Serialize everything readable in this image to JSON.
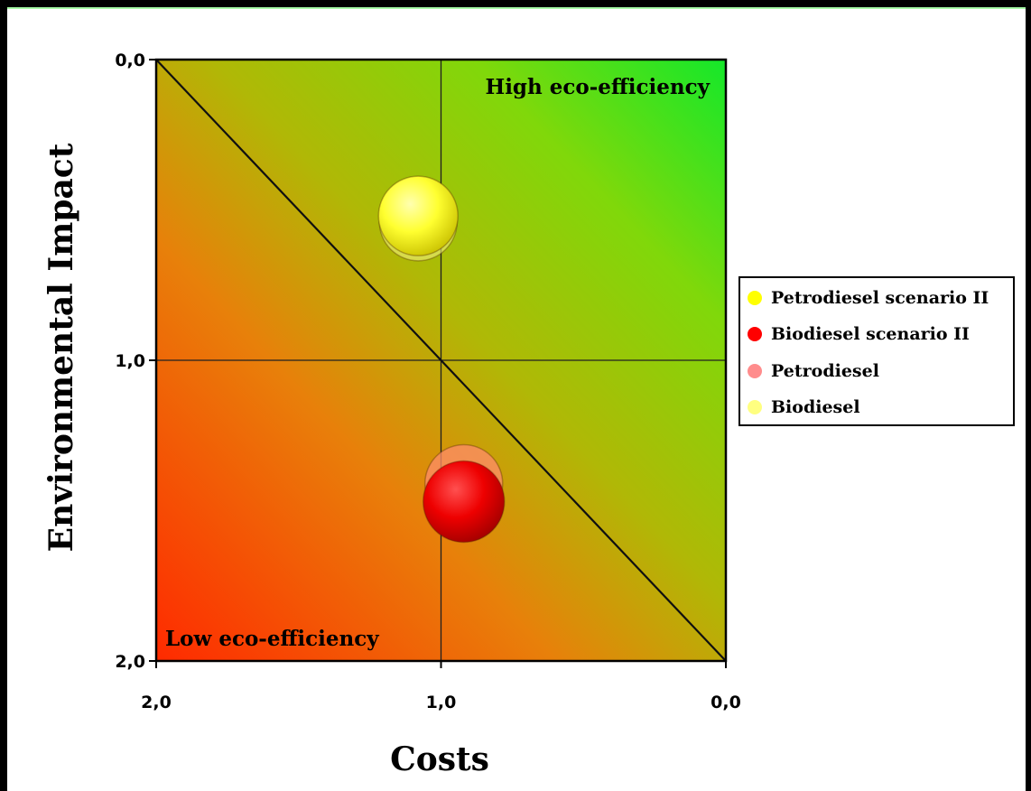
{
  "chart_data": {
    "type": "scatter",
    "title": "",
    "xlabel": "Costs",
    "ylabel": "Environmental Impact",
    "xlim": [
      2.0,
      0.0
    ],
    "ylim": [
      0.0,
      2.0
    ],
    "x_reversed": true,
    "y_reversed": true,
    "x_ticks": [
      "2,0",
      "1,0",
      "0,0"
    ],
    "x_tick_values": [
      2.0,
      1.0,
      0.0
    ],
    "y_ticks": [
      "0,0",
      "1,0",
      "2,0"
    ],
    "y_tick_values": [
      0.0,
      1.0,
      2.0
    ],
    "reference_lines": {
      "x": 1.0,
      "y": 1.0,
      "diagonal": "from (2,0) to (0,2)"
    },
    "background": "gradient: red (low eco-efficiency, bottom-left) to green (high eco-efficiency, top-right)",
    "annotations": {
      "top_right": "High eco-efficiency",
      "bottom_left": "Low eco-efficiency"
    },
    "series": [
      {
        "name": "Petrodiesel scenario II",
        "color": "#ffff00",
        "points": [
          {
            "x": 1.08,
            "y": 0.52
          }
        ]
      },
      {
        "name": "Biodiesel scenario II",
        "color": "#ff0000",
        "points": [
          {
            "x": 0.92,
            "y": 1.47
          }
        ]
      },
      {
        "name": "Petrodiesel",
        "color": "#ff8c8c",
        "points": [
          {
            "x": 0.92,
            "y": 1.41
          }
        ]
      },
      {
        "name": "Biodiesel",
        "color": "#ffff80",
        "points": [
          {
            "x": 1.08,
            "y": 0.54
          }
        ]
      }
    ],
    "legend_position": "right"
  },
  "legend": {
    "items": [
      {
        "label_a": "Petrodiesel",
        "label_b": " scenario II",
        "color": "#ffff00"
      },
      {
        "label_a": "Biodiesel",
        "label_b": " scenario II",
        "color": "#ff0000"
      },
      {
        "label_a": "Petrodiesel",
        "label_b": "",
        "color": "#ff8c8c"
      },
      {
        "label_a": "Biodiesel",
        "label_b": "",
        "color": "#ffff80"
      }
    ]
  }
}
